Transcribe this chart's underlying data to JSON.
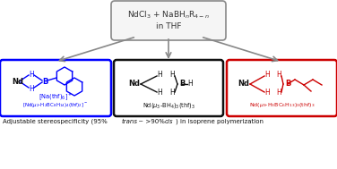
{
  "bg_color": "#ffffff",
  "box_top_text_line1": "NdCl$_3$ + NaBH$_n$R$_{4-n}$",
  "box_top_text_line2": "in THF",
  "box_top_color": "#888888",
  "box_top_facecolor": "#f5f5f5",
  "left_box_color": "#0000ff",
  "center_box_color": "#111111",
  "right_box_color": "#cc0000",
  "left_label_line1": "[Na(thf)$_6$]$^+$",
  "left_label_line2": "[Nd($\\mu_2$-H$_2$BC$_8$H$_{14}$)$_4$(thf)$_2$]$^-$",
  "center_label": "Nd($\\mu_3$-BH$_4$)$_3$(thf)$_3$",
  "right_label": "Nd($\\mu_3$-H$_3$BC$_6$H$_{13}$)$_3$(thf)$_3$",
  "arrow_color": "#888888",
  "struct_color_blue": "#0000ff",
  "struct_color_black": "#111111",
  "struct_color_red": "#cc0000"
}
